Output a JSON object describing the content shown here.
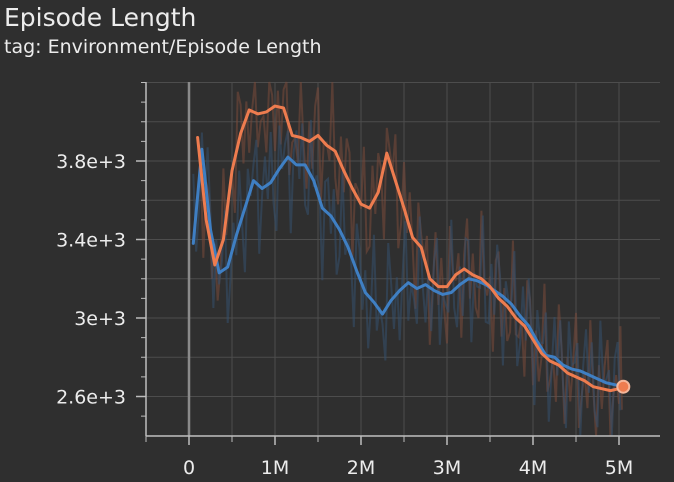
{
  "title": "Episode Length",
  "tag_line": "tag: Environment/Episode Length",
  "chart_data": {
    "type": "line",
    "title": "Episode Length",
    "subtitle": "tag: Environment/Episode Length",
    "xlabel": "",
    "ylabel": "",
    "xlim": [
      -500000,
      5500000
    ],
    "ylim": [
      2500000,
      4200000
    ],
    "ylim_note": "",
    "grid": true,
    "legend": "none",
    "x_ticks": [
      0,
      1000000,
      2000000,
      3000000,
      4000000,
      5000000
    ],
    "x_tick_labels": [
      "0",
      "1M",
      "2M",
      "3M",
      "4M",
      "5M"
    ],
    "y_ticks": [
      2600,
      3000,
      3400,
      3800
    ],
    "y_tick_labels": [
      "2.6e+3",
      "3e+3",
      "3.4e+3",
      "3.8e+3"
    ],
    "series": [
      {
        "color": "#ee7c4f",
        "raw_color": "#7a4a3a",
        "x": [
          0.1,
          0.2,
          0.3,
          0.4,
          0.5,
          0.6,
          0.7,
          0.8,
          0.9,
          1.0,
          1.1,
          1.2,
          1.3,
          1.4,
          1.5,
          1.6,
          1.7,
          1.8,
          1.9,
          2.0,
          2.1,
          2.2,
          2.3,
          2.4,
          2.5,
          2.6,
          2.7,
          2.8,
          2.9,
          3.0,
          3.1,
          3.2,
          3.3,
          3.4,
          3.5,
          3.6,
          3.7,
          3.8,
          3.9,
          4.0,
          4.1,
          4.2,
          4.3,
          4.4,
          4.5,
          4.6,
          4.7,
          4.8,
          4.9,
          5.0,
          5.05
        ],
        "values": [
          3920,
          3500,
          3270,
          3400,
          3750,
          3940,
          4060,
          4040,
          4050,
          4080,
          4070,
          3930,
          3920,
          3900,
          3930,
          3880,
          3850,
          3750,
          3660,
          3580,
          3560,
          3640,
          3840,
          3700,
          3560,
          3410,
          3360,
          3200,
          3160,
          3160,
          3220,
          3250,
          3220,
          3200,
          3160,
          3100,
          3060,
          3000,
          2960,
          2890,
          2820,
          2780,
          2760,
          2720,
          2700,
          2680,
          2650,
          2640,
          2630,
          2640,
          2650
        ]
      },
      {
        "color": "#3f7fc3",
        "raw_color": "#34506e",
        "x": [
          0.05,
          0.15,
          0.25,
          0.35,
          0.45,
          0.55,
          0.65,
          0.75,
          0.85,
          0.95,
          1.05,
          1.15,
          1.25,
          1.35,
          1.45,
          1.55,
          1.65,
          1.75,
          1.85,
          1.95,
          2.05,
          2.15,
          2.25,
          2.35,
          2.45,
          2.55,
          2.65,
          2.75,
          2.85,
          2.95,
          3.05,
          3.15,
          3.25,
          3.35,
          3.45,
          3.55,
          3.65,
          3.75,
          3.85,
          3.95,
          4.05,
          4.15,
          4.25,
          4.35,
          4.45,
          4.55,
          4.65,
          4.75,
          4.85,
          4.95,
          5.05
        ],
        "values": [
          3380,
          3860,
          3450,
          3230,
          3260,
          3420,
          3560,
          3700,
          3660,
          3690,
          3760,
          3820,
          3780,
          3780,
          3700,
          3560,
          3520,
          3450,
          3360,
          3240,
          3130,
          3080,
          3020,
          3090,
          3140,
          3180,
          3150,
          3170,
          3140,
          3120,
          3130,
          3170,
          3200,
          3190,
          3170,
          3140,
          3110,
          3070,
          3010,
          2960,
          2880,
          2810,
          2800,
          2760,
          2740,
          2730,
          2710,
          2690,
          2670,
          2660,
          2650
        ]
      }
    ]
  }
}
